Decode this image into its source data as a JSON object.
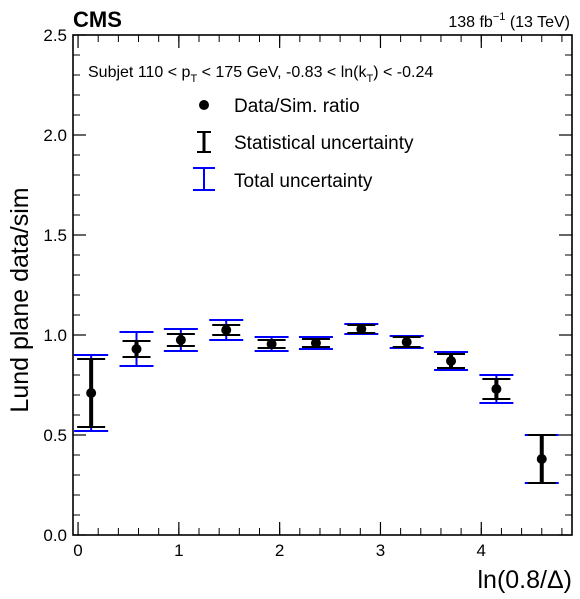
{
  "header": {
    "experiment": "CMS",
    "lumi_value": "138 fb",
    "lumi_exp": "−1",
    "energy": "(13 TeV)"
  },
  "annotation": {
    "p1": "Subjet 110 < p",
    "p1_sub": "T",
    "p2": " < 175 GeV, -0.83 < ln(k",
    "p2_sub": "T",
    "p3": ") < -0.24"
  },
  "legend": {
    "items": [
      {
        "label": "Data/Sim. ratio",
        "marker": "dot",
        "color": "#000000"
      },
      {
        "label": "Statistical uncertainty",
        "marker": "errorbar",
        "color": "#000000"
      },
      {
        "label": "Total uncertainty",
        "marker": "errorbar",
        "color": "#0000ff"
      }
    ]
  },
  "colors": {
    "stat": "#000000",
    "total": "#0000ff",
    "marker": "#000000"
  },
  "chart_data": {
    "type": "scatter",
    "title": "",
    "xlabel": "ln(0.8/Δ)",
    "ylabel": "Lund plane data/sim",
    "xlim": [
      -0.05,
      4.9
    ],
    "ylim": [
      0.0,
      2.5
    ],
    "x_ticks": [
      0,
      1,
      2,
      3,
      4
    ],
    "x_tick_labels": [
      "0",
      "1",
      "2",
      "3",
      "4"
    ],
    "y_ticks": [
      0.0,
      0.5,
      1.0,
      1.5,
      2.0,
      2.5
    ],
    "y_tick_labels": [
      "0.0",
      "0.5",
      "1.0",
      "1.5",
      "2.0",
      "2.5"
    ],
    "grid": false,
    "legend_position": "top-center",
    "x": [
      0.13,
      0.58,
      1.02,
      1.47,
      1.92,
      2.36,
      2.81,
      3.26,
      3.7,
      4.15,
      4.6
    ],
    "y": [
      0.71,
      0.93,
      0.975,
      1.025,
      0.955,
      0.96,
      1.03,
      0.965,
      0.87,
      0.73,
      0.38
    ],
    "stat_err": [
      0.17,
      0.04,
      0.03,
      0.025,
      0.02,
      0.02,
      0.02,
      0.025,
      0.035,
      0.05,
      0.12
    ],
    "total_err": [
      0.19,
      0.085,
      0.055,
      0.05,
      0.035,
      0.03,
      0.025,
      0.03,
      0.045,
      0.07,
      0.12
    ]
  }
}
